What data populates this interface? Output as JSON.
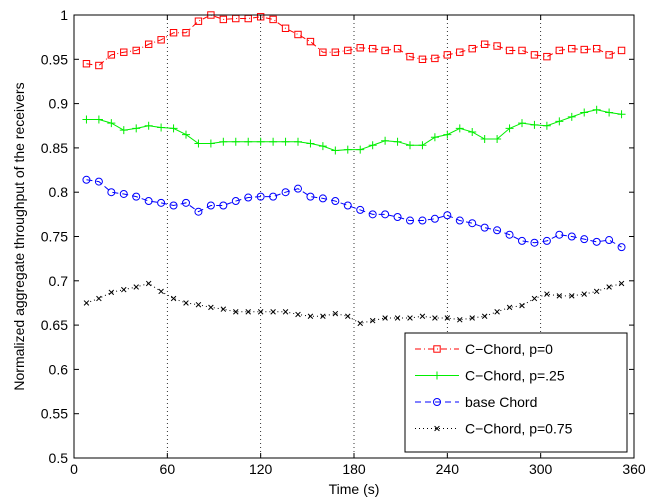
{
  "chart_data": {
    "type": "line",
    "title": "",
    "xlabel": "Time (s)",
    "ylabel": "Normalized aggregate throughput of the receivers",
    "xlim": [
      0,
      360
    ],
    "ylim": [
      0.5,
      1.0
    ],
    "xticks": [
      0,
      60,
      120,
      180,
      240,
      300,
      360
    ],
    "xtick_labels": [
      "0",
      "60",
      "120",
      "180",
      "240",
      "300",
      "360"
    ],
    "yticks": [
      0.5,
      0.55,
      0.6,
      0.65,
      0.7,
      0.75,
      0.8,
      0.85,
      0.9,
      0.95,
      1.0
    ],
    "ytick_labels": [
      "0.5",
      "0.55",
      "0.6",
      "0.65",
      "0.7",
      "0.75",
      "0.8",
      "0.85",
      "0.9",
      "0.95",
      "1"
    ],
    "grid": "vertical dotted at x ticks",
    "legend_position": "bottom-right",
    "x": [
      8,
      16,
      24,
      32,
      40,
      48,
      56,
      64,
      72,
      80,
      88,
      96,
      104,
      112,
      120,
      128,
      136,
      144,
      152,
      160,
      168,
      176,
      184,
      192,
      200,
      208,
      216,
      224,
      232,
      240,
      248,
      256,
      264,
      272,
      280,
      288,
      296,
      304,
      312,
      320,
      328,
      336,
      344,
      352
    ],
    "series": [
      {
        "name": "C−Chord, p=0",
        "color": "#ff0000",
        "marker": "square",
        "linestyle": "dash-dot",
        "values": [
          0.945,
          0.943,
          0.955,
          0.958,
          0.96,
          0.967,
          0.972,
          0.98,
          0.98,
          0.993,
          1.0,
          0.995,
          0.996,
          0.996,
          0.998,
          0.995,
          0.985,
          0.978,
          0.97,
          0.958,
          0.958,
          0.96,
          0.963,
          0.962,
          0.96,
          0.962,
          0.953,
          0.95,
          0.951,
          0.955,
          0.958,
          0.962,
          0.967,
          0.965,
          0.96,
          0.96,
          0.955,
          0.953,
          0.96,
          0.962,
          0.961,
          0.962,
          0.955,
          0.96
        ]
      },
      {
        "name": "C−Chord, p=.25",
        "color": "#00ee00",
        "marker": "plus",
        "linestyle": "solid",
        "values": [
          0.882,
          0.882,
          0.878,
          0.87,
          0.872,
          0.875,
          0.873,
          0.872,
          0.865,
          0.855,
          0.855,
          0.857,
          0.857,
          0.857,
          0.857,
          0.857,
          0.857,
          0.857,
          0.855,
          0.852,
          0.847,
          0.848,
          0.848,
          0.853,
          0.858,
          0.857,
          0.853,
          0.853,
          0.862,
          0.865,
          0.872,
          0.868,
          0.86,
          0.86,
          0.872,
          0.878,
          0.876,
          0.875,
          0.88,
          0.885,
          0.89,
          0.893,
          0.89,
          0.888
        ]
      },
      {
        "name": "base Chord",
        "color": "#0000ff",
        "marker": "circle",
        "linestyle": "dashed",
        "values": [
          0.814,
          0.812,
          0.8,
          0.798,
          0.795,
          0.79,
          0.788,
          0.785,
          0.788,
          0.778,
          0.785,
          0.785,
          0.79,
          0.794,
          0.795,
          0.795,
          0.8,
          0.804,
          0.795,
          0.793,
          0.79,
          0.785,
          0.78,
          0.775,
          0.775,
          0.772,
          0.768,
          0.768,
          0.77,
          0.774,
          0.768,
          0.765,
          0.76,
          0.757,
          0.752,
          0.745,
          0.743,
          0.745,
          0.752,
          0.75,
          0.747,
          0.744,
          0.746,
          0.738
        ]
      },
      {
        "name": "C−Chord, p=0.75",
        "color": "#000000",
        "marker": "x",
        "linestyle": "dotted",
        "values": [
          0.675,
          0.68,
          0.687,
          0.69,
          0.693,
          0.697,
          0.688,
          0.68,
          0.675,
          0.673,
          0.67,
          0.668,
          0.665,
          0.665,
          0.665,
          0.665,
          0.665,
          0.662,
          0.66,
          0.66,
          0.663,
          0.66,
          0.652,
          0.655,
          0.658,
          0.658,
          0.658,
          0.66,
          0.658,
          0.658,
          0.656,
          0.658,
          0.66,
          0.665,
          0.67,
          0.672,
          0.68,
          0.685,
          0.683,
          0.683,
          0.685,
          0.688,
          0.693,
          0.697
        ]
      }
    ]
  }
}
